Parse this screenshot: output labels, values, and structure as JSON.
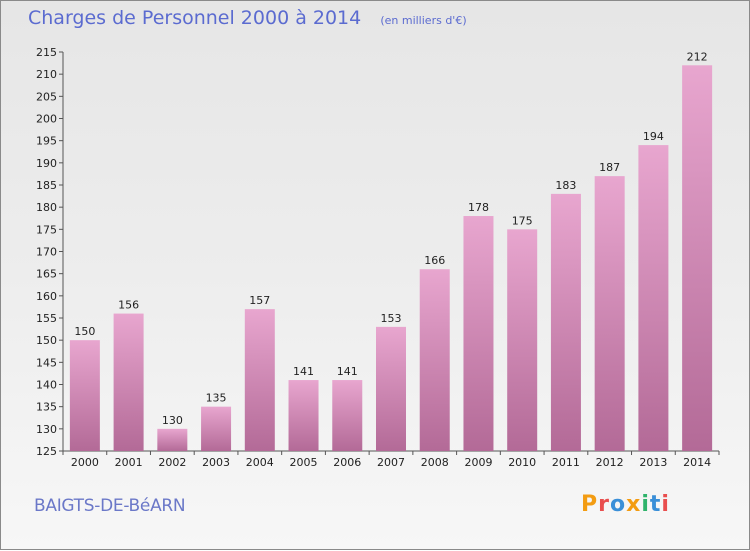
{
  "header": {
    "title": "Charges de Personnel 2000 à 2014",
    "subtitle": "(en milliers d'€)"
  },
  "footer": {
    "place": "BAIGTS-DE-BéARN",
    "logo": "Proxiti",
    "logo_colors": [
      "#f39c12",
      "#e94e4e",
      "#3a8fd8",
      "#f39c12",
      "#2fb36b",
      "#3a8fd8",
      "#e94e4e"
    ]
  },
  "colors": {
    "bar_top": "#e8a6cf",
    "bar_bottom": "#b36a97",
    "axis": "#555555"
  },
  "chart_data": {
    "type": "bar",
    "title": "Charges de Personnel 2000 à 2014",
    "subtitle": "(en milliers d'€)",
    "categories": [
      "2000",
      "2001",
      "2002",
      "2003",
      "2004",
      "2005",
      "2006",
      "2007",
      "2008",
      "2009",
      "2010",
      "2011",
      "2012",
      "2013",
      "2014"
    ],
    "values": [
      150,
      156,
      130,
      135,
      157,
      141,
      141,
      153,
      166,
      178,
      175,
      183,
      187,
      194,
      212
    ],
    "ylim": [
      125,
      215
    ],
    "yticks": [
      125,
      130,
      135,
      140,
      145,
      150,
      155,
      160,
      165,
      170,
      175,
      180,
      185,
      190,
      195,
      200,
      205,
      210,
      215
    ],
    "grid": false,
    "data_labels": true
  }
}
